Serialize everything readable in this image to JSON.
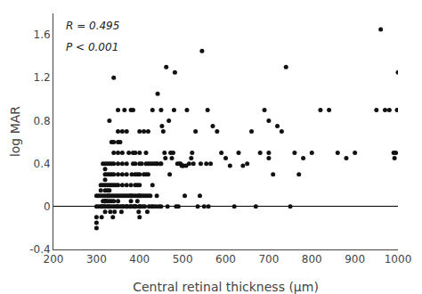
{
  "chart_data": {
    "type": "scatter",
    "xlabel": "Central retinal thickness (μm)",
    "ylabel": "log MAR",
    "annotations": [
      "R = 0.495",
      "P < 0.001"
    ],
    "x": [
      300,
      300,
      300,
      300,
      300,
      305,
      305,
      310,
      310,
      310,
      310,
      312,
      312,
      315,
      315,
      315,
      315,
      315,
      318,
      318,
      320,
      320,
      320,
      320,
      320,
      320,
      320,
      320,
      320,
      320,
      322,
      325,
      325,
      325,
      325,
      325,
      325,
      325,
      328,
      328,
      330,
      330,
      330,
      330,
      330,
      330,
      330,
      330,
      332,
      335,
      335,
      335,
      335,
      335,
      335,
      335,
      338,
      340,
      340,
      340,
      340,
      340,
      340,
      340,
      340,
      340,
      342,
      345,
      345,
      345,
      348,
      350,
      350,
      350,
      350,
      350,
      350,
      350,
      350,
      350,
      350,
      355,
      355,
      355,
      358,
      360,
      360,
      360,
      360,
      360,
      360,
      360,
      362,
      365,
      365,
      368,
      370,
      370,
      370,
      370,
      370,
      370,
      372,
      375,
      375,
      378,
      380,
      380,
      380,
      380,
      380,
      380,
      382,
      385,
      385,
      385,
      385,
      385,
      388,
      390,
      390,
      390,
      390,
      390,
      390,
      392,
      395,
      395,
      395,
      395,
      398,
      400,
      400,
      400,
      400,
      400,
      400,
      400,
      400,
      400,
      400,
      402,
      405,
      405,
      408,
      410,
      410,
      410,
      412,
      415,
      415,
      415,
      415,
      418,
      420,
      420,
      420,
      420,
      422,
      425,
      425,
      428,
      430,
      430,
      430,
      432,
      435,
      438,
      440,
      440,
      440,
      442,
      445,
      448,
      450,
      450,
      450,
      452,
      455,
      458,
      460,
      462,
      465,
      468,
      470,
      472,
      475,
      478,
      480,
      482,
      485,
      488,
      490,
      492,
      495,
      498,
      500,
      502,
      505,
      508,
      510,
      515,
      520,
      522,
      525,
      530,
      535,
      540,
      542,
      545,
      550,
      555,
      558,
      560,
      565,
      570,
      580,
      590,
      600,
      610,
      620,
      630,
      640,
      650,
      660,
      670,
      680,
      690,
      700,
      700,
      700,
      710,
      720,
      730,
      740,
      750,
      760,
      770,
      780,
      800,
      820,
      840,
      860,
      880,
      900,
      950,
      960,
      970,
      980,
      990,
      992,
      995,
      998,
      1000
    ],
    "values": [
      0.1,
      0,
      -0.1,
      -0.15,
      -0.2,
      0,
      0.1,
      0,
      0.1,
      0.15,
      0.2,
      0,
      -0.1,
      0,
      0.05,
      0.1,
      0.2,
      0.4,
      0,
      0.05,
      0,
      0.05,
      0.1,
      0.15,
      0.2,
      0.25,
      0.3,
      0.35,
      0.4,
      -0.05,
      0.05,
      0,
      0.05,
      0.1,
      0.15,
      0.2,
      0.3,
      0.4,
      0,
      0.1,
      0,
      0.05,
      0.1,
      0.15,
      0.2,
      0.3,
      0.4,
      0.8,
      -0.05,
      0,
      0.05,
      0.1,
      0.2,
      0.3,
      0.4,
      0.6,
      -0.1,
      0,
      0.05,
      0.1,
      0.2,
      0.3,
      0.4,
      0.5,
      0.6,
      1.2,
      -0.05,
      0,
      0.1,
      0.2,
      0,
      0,
      0.05,
      0.1,
      0.2,
      0.3,
      0.4,
      0.5,
      0.6,
      0.7,
      0.9,
      0,
      0.1,
      0.6,
      -0.05,
      0,
      0.1,
      0.2,
      0.3,
      0.4,
      0.5,
      0.7,
      0,
      0.1,
      0.9,
      0,
      0,
      0.1,
      0.2,
      0.3,
      0.4,
      0.7,
      0,
      0.1,
      0.5,
      0,
      0.1,
      0.9,
      0,
      0.05,
      0.1,
      0.2,
      0.3,
      0.4,
      0.5,
      0,
      0.1,
      0.9,
      0,
      0,
      0.1,
      0.2,
      0.3,
      0.4,
      0.5,
      0,
      0.05,
      0.1,
      0.2,
      0.3,
      -0.05,
      0,
      0.1,
      0.5,
      -0.1,
      0,
      0.1,
      0.2,
      0.3,
      0.4,
      0.7,
      0,
      0.1,
      0.4,
      0,
      0.1,
      0.3,
      0.7,
      0,
      0.1,
      0.3,
      0.4,
      0.5,
      -0.05,
      0.1,
      0.3,
      0.4,
      0.7,
      0,
      0.1,
      0.4,
      0,
      0.2,
      0.4,
      0.9,
      0,
      0.4,
      0,
      0.4,
      0.1,
      0.4,
      1.05,
      0,
      0.4,
      0.9,
      0,
      0.4,
      0.75,
      0.7,
      0.5,
      0.45,
      1.3,
      0,
      0.8,
      0.3,
      0.5,
      0.45,
      0.5,
      0.9,
      1.25,
      0,
      0.4,
      0,
      0.4,
      0.4,
      0.38,
      0.38,
      0.38,
      0.1,
      0.38,
      0.9,
      0.4,
      0.45,
      0.5,
      0.4,
      0.7,
      0,
      0.1,
      0.4,
      1.45,
      0,
      0.4,
      0.9,
      0,
      0.4,
      0.75,
      0.7,
      0.5,
      0.45,
      0.38,
      0,
      0.5,
      0.38,
      0.4,
      0.7,
      0,
      0.5,
      0.9,
      0.45,
      0.5,
      0.8,
      0.3,
      0.75,
      0.7,
      1.3,
      0,
      0.5,
      0.3,
      0.45,
      0.5,
      0.9,
      0.9,
      0.5,
      0.45,
      0.5,
      0.9,
      1.65,
      0.9,
      0.9,
      0.5,
      0.45,
      0.5,
      0.9,
      1.25
    ],
    "color": "#111111",
    "xlim": [
      200,
      1000
    ],
    "xticks": [
      200,
      300,
      400,
      500,
      600,
      700,
      800,
      900,
      1000
    ],
    "ylim": [
      -0.4,
      1.8
    ],
    "yticks": [
      -0.4,
      0,
      0.4,
      0.8,
      1.2,
      1.6
    ],
    "grid": false
  }
}
